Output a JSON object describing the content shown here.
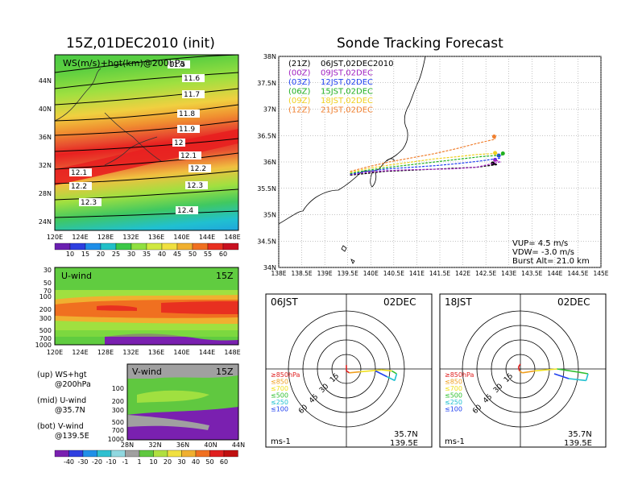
{
  "left_title": "15Z,01DEC2010 (init)",
  "right_title": "Sonde Tracking Forecast",
  "top_panel": {
    "label": "WS(m/s)+hgt(km)@200hPa",
    "lat_ticks": [
      "44N",
      "40N",
      "36N",
      "32N",
      "28N",
      "24N"
    ],
    "lon_ticks": [
      "120E",
      "124E",
      "128E",
      "132E",
      "136E",
      "140E",
      "144E",
      "148E"
    ],
    "contour_labels": [
      "11.5",
      "11.6",
      "11.7",
      "11.8",
      "11.9",
      "12",
      "12.1",
      "12.2",
      "12.1",
      "12.2",
      "12.3",
      "12.3",
      "12.4"
    ],
    "colorbar_labels": [
      "10",
      "15",
      "20",
      "25",
      "30",
      "35",
      "40",
      "45",
      "50",
      "55",
      "60"
    ],
    "colorbar_colors": [
      "#6a1fb0",
      "#2c3ee0",
      "#1e8ee8",
      "#22c0c8",
      "#3cc848",
      "#90e040",
      "#d0e840",
      "#f0e040",
      "#f0b030",
      "#f07020",
      "#e83020",
      "#c81020"
    ]
  },
  "u_panel": {
    "label": "U-wind",
    "time": "15Z",
    "p_ticks": [
      "30",
      "50",
      "70",
      "100",
      "200",
      "300",
      "500",
      "700",
      "1000"
    ],
    "lon_ticks": [
      "120E",
      "124E",
      "128E",
      "132E",
      "136E",
      "140E",
      "144E",
      "148E"
    ]
  },
  "v_panel": {
    "label": "V-wind",
    "time": "15Z",
    "p_ticks": [
      "100",
      "200",
      "300",
      "500",
      "700",
      "1000"
    ],
    "lat_ticks": [
      "28N",
      "32N",
      "36N",
      "40N",
      "44N"
    ]
  },
  "notes": [
    {
      "label": "(up) WS+hgt",
      "detail": "@200hPa"
    },
    {
      "label": "(mid) U-wind",
      "detail": "@35.7N"
    },
    {
      "label": "(bot) V-wind",
      "detail": "@139.5E"
    }
  ],
  "wind_colorbar": {
    "labels": [
      "-40",
      "-30",
      "-20",
      "-10",
      "-1",
      "1",
      "10",
      "20",
      "30",
      "40",
      "50",
      "60"
    ],
    "colors": [
      "#7a20b0",
      "#3040e0",
      "#2090e8",
      "#30c0d0",
      "#90d8e0",
      "#a0a0a0",
      "#60c840",
      "#b0e040",
      "#f0e040",
      "#f0b030",
      "#f07020",
      "#e02020",
      "#c01010"
    ]
  },
  "track_map": {
    "lat_ticks": [
      "38N",
      "37.5N",
      "37N",
      "36.5N",
      "36N",
      "35.5N",
      "35N",
      "34.5N",
      "34N"
    ],
    "lon_ticks": [
      "138E",
      "138.5E",
      "139E",
      "139.5E",
      "140E",
      "140.5E",
      "141E",
      "141.5E",
      "142E",
      "142.5E",
      "143E",
      "143.5E",
      "144E",
      "144.5E",
      "145E"
    ],
    "legend": [
      {
        "utc": "(21Z)",
        "jst": "06JST,02DEC2010",
        "color": "#000000"
      },
      {
        "utc": "(00Z)",
        "jst": "09JST,02DEC",
        "color": "#a020c0"
      },
      {
        "utc": "(03Z)",
        "jst": "12JST,02DEC",
        "color": "#2040f0"
      },
      {
        "utc": "(06Z)",
        "jst": "15JST,02DEC",
        "color": "#20b020"
      },
      {
        "utc": "(09Z)",
        "jst": "18JST,02DEC",
        "color": "#f0d020"
      },
      {
        "utc": "(12Z)",
        "jst": "21JST,02DEC",
        "color": "#f08030"
      }
    ],
    "vup": "VUP= 4.5 m/s",
    "vdw": "VDW= -3.0 m/s",
    "burst": "Burst Alt= 21.0 km"
  },
  "hodo_left": {
    "time": "06JST",
    "date": "02DEC"
  },
  "hodo_right": {
    "time": "18JST",
    "date": "02DEC"
  },
  "hodo_common": {
    "ring_labels": [
      "15",
      "30",
      "45",
      "60"
    ],
    "units": "ms-1",
    "lat": "35.7N",
    "lon": "139.5E",
    "levels": [
      {
        "text": "≥850hPa",
        "color": "#e02020"
      },
      {
        "text": "≤850",
        "color": "#f0a020"
      },
      {
        "text": "≤700",
        "color": "#f0e020"
      },
      {
        "text": "≤500",
        "color": "#30c030"
      },
      {
        "text": "≤250",
        "color": "#20c0d0"
      },
      {
        "text": "≤100",
        "color": "#2040f0"
      }
    ]
  },
  "chart_data": [
    {
      "type": "heatmap",
      "title": "15Z,01DEC2010 (init)",
      "panel": "WS(m/s)+hgt(km)@200hPa",
      "xlim": [
        120,
        149
      ],
      "ylim": [
        22,
        47
      ],
      "contour_levels_km": [
        11.5,
        11.6,
        11.7,
        11.8,
        11.9,
        12.0,
        12.1,
        12.2,
        12.3,
        12.4
      ],
      "colorbar_ms": [
        10,
        15,
        20,
        25,
        30,
        35,
        40,
        45,
        50,
        55,
        60
      ],
      "jet_core_lat_at": [
        {
          "lon": 120,
          "lat": 31
        },
        {
          "lon": 135,
          "lat": 33
        },
        {
          "lon": 148,
          "lat": 35
        }
      ],
      "max_speed_ms": 60
    },
    {
      "type": "heatmap",
      "panel": "U-wind",
      "xlim": [
        120,
        149
      ],
      "yticks_hPa": [
        30,
        50,
        70,
        100,
        200,
        300,
        500,
        700,
        1000
      ],
      "max_level_hPa": 200
    },
    {
      "type": "heatmap",
      "panel": "V-wind",
      "xlim": [
        28,
        44
      ],
      "yticks_hPa": [
        100,
        200,
        300,
        500,
        700,
        1000
      ]
    },
    {
      "type": "line",
      "title": "Sonde Tracking Forecast",
      "xlim": [
        138,
        145
      ],
      "ylim": [
        34,
        38
      ],
      "series": [
        {
          "name": "06JST,02DEC2010",
          "x": [
            139.55,
            139.9,
            140.3,
            140.8,
            141.3,
            141.8,
            142.3,
            142.75,
            142.65
          ],
          "y": [
            35.75,
            35.78,
            35.82,
            35.84,
            35.86,
            35.88,
            35.9,
            35.95,
            35.97
          ]
        },
        {
          "name": "09JST,02DEC",
          "x": [
            139.55,
            139.9,
            140.3,
            140.8,
            141.3,
            141.8,
            142.3,
            142.8,
            142.7
          ],
          "y": [
            35.76,
            35.8,
            35.83,
            35.85,
            35.86,
            35.87,
            35.9,
            36.0,
            36.04
          ]
        },
        {
          "name": "12JST,02DEC",
          "x": [
            139.55,
            139.9,
            140.4,
            140.9,
            141.4,
            141.9,
            142.4,
            142.8,
            142.78
          ],
          "y": [
            35.77,
            35.82,
            35.87,
            35.9,
            35.93,
            35.97,
            36.02,
            36.07,
            36.12
          ]
        },
        {
          "name": "15JST,02DEC",
          "x": [
            139.55,
            139.9,
            140.4,
            140.9,
            141.4,
            141.9,
            142.4,
            142.85,
            142.87
          ],
          "y": [
            35.78,
            35.84,
            35.9,
            35.95,
            36.0,
            36.05,
            36.1,
            36.13,
            36.16
          ]
        },
        {
          "name": "18JST,02DEC",
          "x": [
            139.55,
            139.9,
            140.4,
            140.9,
            141.4,
            141.9,
            142.3,
            142.75,
            142.7
          ],
          "y": [
            35.8,
            35.87,
            35.94,
            36.0,
            36.06,
            36.1,
            36.14,
            36.16,
            36.17
          ]
        },
        {
          "name": "21JST,02DEC",
          "x": [
            139.55,
            139.9,
            140.4,
            140.9,
            141.4,
            141.9,
            142.3,
            142.7,
            142.68
          ],
          "y": [
            35.82,
            35.9,
            36.0,
            36.08,
            36.16,
            36.26,
            36.35,
            36.43,
            36.48
          ]
        }
      ]
    },
    {
      "type": "line",
      "panel": "06JST hodograph",
      "unit": "ms-1",
      "rings": [
        15,
        30,
        45,
        60
      ],
      "points_uv": [
        [
          0,
          -4
        ],
        [
          0,
          2
        ],
        [
          3,
          4
        ],
        [
          14,
          3
        ],
        [
          36,
          1
        ],
        [
          47,
          2
        ],
        [
          52,
          5
        ],
        [
          50,
          12
        ],
        [
          42,
          8
        ],
        [
          30,
          2
        ]
      ]
    },
    {
      "type": "line",
      "panel": "18JST hodograph",
      "unit": "ms-1",
      "rings": [
        15,
        30,
        45,
        60
      ],
      "points_uv": [
        [
          0,
          -5
        ],
        [
          -2,
          -2
        ],
        [
          -1,
          2
        ],
        [
          2,
          4
        ],
        [
          15,
          2
        ],
        [
          38,
          0
        ],
        [
          58,
          3
        ],
        [
          70,
          5
        ],
        [
          68,
          12
        ],
        [
          50,
          10
        ],
        [
          35,
          5
        ]
      ]
    }
  ]
}
